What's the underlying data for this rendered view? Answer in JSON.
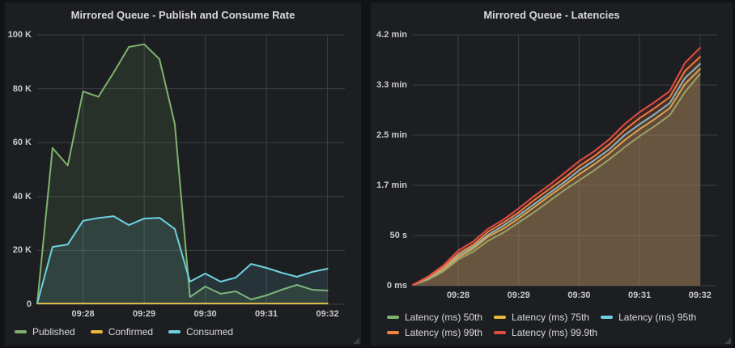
{
  "theme": {
    "page_bg": "#121316",
    "panel_bg": "#1d1e21",
    "grid_color": "#3d4046",
    "title_color": "#d8d9da",
    "axis_text_color": "#c9cacb",
    "legend_text_color": "#d8d9da"
  },
  "chart_data": [
    {
      "type": "area",
      "title": "Mirrored Queue - Publish and Consume Rate",
      "ylabel": "",
      "xlabel": "",
      "ylim": [
        0,
        100000
      ],
      "interval_s": 15,
      "x_span_s": 302,
      "x_labels": [
        "09:27:15",
        "09:27:30",
        "09:27:45",
        "09:28:00",
        "09:28:15",
        "09:28:30",
        "09:28:45",
        "09:29:00",
        "09:29:15",
        "09:29:30",
        "09:29:45",
        "09:30:00",
        "09:30:15",
        "09:30:30",
        "09:30:45",
        "09:31:00",
        "09:31:15",
        "09:31:30",
        "09:31:45",
        "09:32:00"
      ],
      "yticks": [
        {
          "label": "0",
          "value": 0
        },
        {
          "label": "20 K",
          "value": 20000
        },
        {
          "label": "40 K",
          "value": 40000
        },
        {
          "label": "60 K",
          "value": 60000
        },
        {
          "label": "80 K",
          "value": 80000
        },
        {
          "label": "100 K",
          "value": 100000
        }
      ],
      "xticks": [
        {
          "label": "09:28",
          "sec": 45
        },
        {
          "label": "09:29",
          "sec": 105
        },
        {
          "label": "09:30",
          "sec": 165
        },
        {
          "label": "09:31",
          "sec": 225
        },
        {
          "label": "09:32",
          "sec": 285
        }
      ],
      "series": [
        {
          "name": "Published",
          "color": "#7EB26D",
          "values": [
            0,
            58000,
            51500,
            79000,
            77000,
            86000,
            95500,
            96500,
            91000,
            67000,
            2700,
            6600,
            3900,
            4800,
            1800,
            3300,
            5400,
            7200,
            5400,
            5100
          ]
        },
        {
          "name": "Confirmed",
          "color": "#EAB839",
          "values": [
            0,
            0,
            0,
            0,
            0,
            0,
            0,
            0,
            0,
            0,
            0,
            0,
            0,
            0,
            0,
            0,
            0,
            0,
            0,
            0
          ]
        },
        {
          "name": "Consumed",
          "color": "#6ED0E0",
          "values": [
            0,
            21300,
            22200,
            31000,
            32000,
            32700,
            29400,
            31800,
            32100,
            28000,
            8400,
            11400,
            8400,
            9900,
            15000,
            13500,
            11700,
            10200,
            12000,
            13200
          ]
        }
      ],
      "legend_position": "bottom"
    },
    {
      "type": "area",
      "title": "Mirrored Queue - Latencies",
      "ylabel": "",
      "xlabel": "",
      "value_unit": "s",
      "ylim": [
        0,
        250
      ],
      "interval_s": 15,
      "x_span_s": 302,
      "x_labels": [
        "09:27:15",
        "09:27:30",
        "09:27:45",
        "09:28:00",
        "09:28:15",
        "09:28:30",
        "09:28:45",
        "09:29:00",
        "09:29:15",
        "09:29:30",
        "09:29:45",
        "09:30:00",
        "09:30:15",
        "09:30:30",
        "09:30:45",
        "09:31:00",
        "09:31:15",
        "09:31:30",
        "09:31:45",
        "09:32:00"
      ],
      "yticks": [
        {
          "label": "0 ms",
          "value": 0
        },
        {
          "label": "50 s",
          "value": 50
        },
        {
          "label": "1.7 min",
          "value": 100
        },
        {
          "label": "2.5 min",
          "value": 150
        },
        {
          "label": "3.3 min",
          "value": 200
        },
        {
          "label": "4.2 min",
          "value": 250
        }
      ],
      "xticks": [
        {
          "label": "09:28",
          "sec": 45
        },
        {
          "label": "09:29",
          "sec": 105
        },
        {
          "label": "09:30",
          "sec": 165
        },
        {
          "label": "09:31",
          "sec": 225
        },
        {
          "label": "09:32",
          "sec": 285
        }
      ],
      "series": [
        {
          "name": "Latency (ms) 50th",
          "color": "#7EB26D",
          "values": [
            0,
            6,
            14,
            26,
            34,
            45,
            53,
            63,
            73,
            84,
            95,
            105,
            115,
            126,
            138,
            149,
            159,
            170,
            193,
            211
          ]
        },
        {
          "name": "Latency (ms) 75th",
          "color": "#EAB839",
          "values": [
            0,
            7,
            16,
            28,
            37,
            49,
            57,
            67,
            78,
            89,
            100,
            111,
            121,
            132,
            145,
            156,
            166,
            177,
            201,
            216
          ]
        },
        {
          "name": "Latency (ms) 95th",
          "color": "#6ED0E0",
          "values": [
            0,
            7,
            17,
            30,
            39,
            51,
            60,
            70,
            81,
            92,
            103,
            115,
            125,
            136,
            150,
            161,
            171,
            182,
            207,
            221
          ]
        },
        {
          "name": "Latency (ms) 99th",
          "color": "#EF843C",
          "values": [
            0,
            8,
            18,
            32,
            41,
            54,
            63,
            73,
            85,
            96,
            107,
            119,
            129,
            141,
            155,
            167,
            177,
            188,
            214,
            228
          ]
        },
        {
          "name": "Latency (ms) 99.9th",
          "color": "#E24D42",
          "values": [
            0,
            9,
            20,
            35,
            44,
            57,
            66,
            77,
            89,
            100,
            112,
            124,
            134,
            146,
            161,
            173,
            183,
            194,
            222,
            237
          ]
        }
      ],
      "legend_position": "bottom"
    }
  ]
}
